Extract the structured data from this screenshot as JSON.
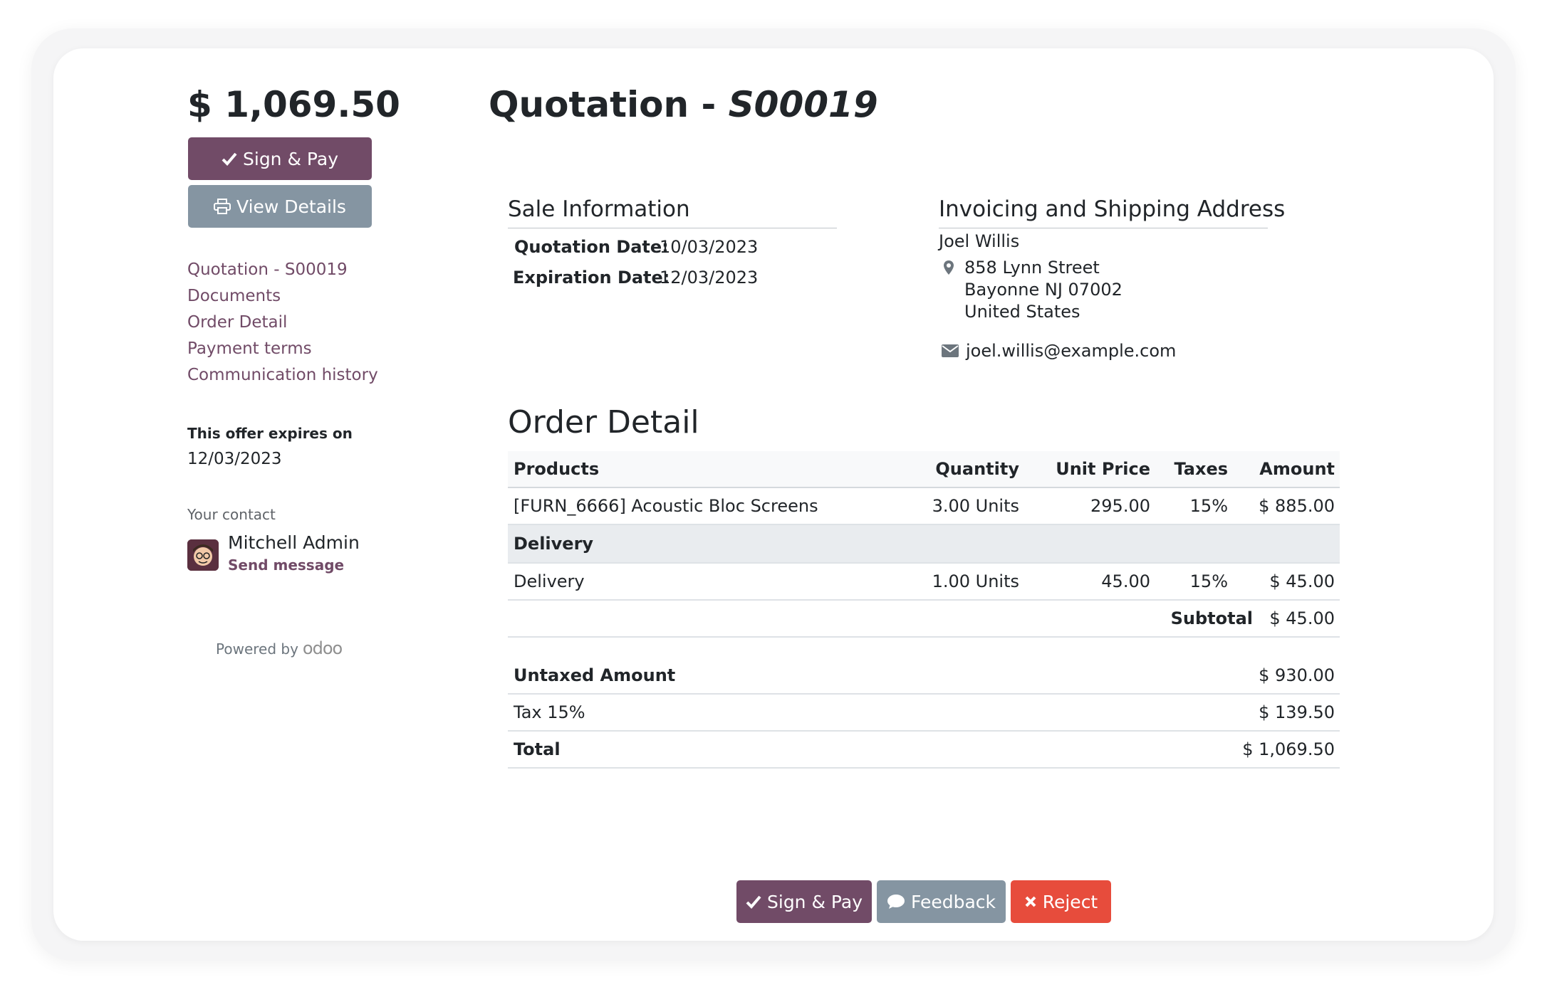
{
  "sidebar": {
    "amount": "$ 1,069.50",
    "sign_pay_label": "Sign & Pay",
    "view_details_label": "View Details",
    "nav": [
      "Quotation - S00019",
      "Documents",
      "Order Detail",
      "Payment terms",
      "Communication history"
    ],
    "expires_label": "This offer expires on",
    "expires_date": "12/03/2023",
    "contact_label": "Your contact",
    "contact_name": "Mitchell Admin",
    "send_message": "Send message",
    "powered_by": "Powered by",
    "powered_brand": "odoo"
  },
  "main": {
    "title_prefix": "Quotation - ",
    "title_ref": "S00019",
    "sale_info": {
      "heading": "Sale Information",
      "quotation_date_label": "Quotation Date:",
      "quotation_date": "10/03/2023",
      "expiration_date_label": "Expiration Date:",
      "expiration_date": "12/03/2023"
    },
    "address": {
      "heading": "Invoicing and Shipping Address",
      "name": "Joel Willis",
      "street": "858 Lynn Street",
      "city": "Bayonne NJ 07002",
      "country": "United States",
      "email": "joel.willis@example.com"
    },
    "order_detail": {
      "heading": "Order Detail",
      "columns": [
        "Products",
        "Quantity",
        "Unit Price",
        "Taxes",
        "Amount"
      ],
      "rows": [
        {
          "product": "[FURN_6666] Acoustic Bloc Screens",
          "quantity": "3.00 Units",
          "unit_price": "295.00",
          "taxes": "15%",
          "amount": "$ 885.00"
        }
      ],
      "section": "Delivery",
      "section_rows": [
        {
          "product": "Delivery",
          "quantity": "1.00 Units",
          "unit_price": "45.00",
          "taxes": "15%",
          "amount": "$ 45.00"
        }
      ],
      "subtotal_label": "Subtotal",
      "subtotal_value": "$ 45.00"
    },
    "totals": {
      "untaxed_label": "Untaxed Amount",
      "untaxed_value": "$ 930.00",
      "tax_label": "Tax 15%",
      "tax_value": "$ 139.50",
      "total_label": "Total",
      "total_value": "$ 1,069.50"
    }
  },
  "footer_actions": {
    "sign_pay": "Sign & Pay",
    "feedback": "Feedback",
    "reject": "Reject"
  },
  "colors": {
    "primary": "#714B67",
    "secondary": "#8595A2",
    "danger": "#E74C3C"
  },
  "icons": {
    "check": "check-icon",
    "print": "print-icon",
    "map_marker": "map-marker-icon",
    "envelope": "envelope-icon",
    "comment": "comment-icon",
    "times": "times-icon"
  }
}
